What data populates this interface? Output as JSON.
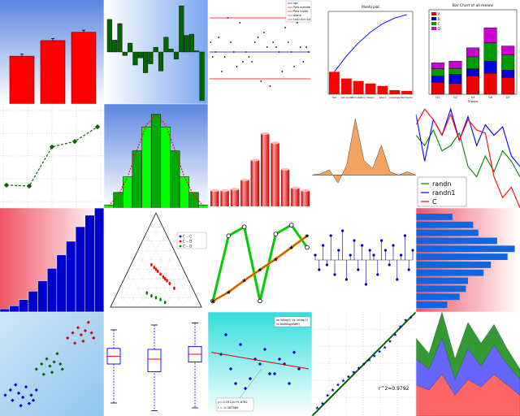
{
  "chart_data": [
    {
      "type": "bar",
      "title": "",
      "xlabel": "",
      "ylabel": "",
      "categories": [
        "",
        "",
        ""
      ],
      "values": [
        0.46,
        0.61,
        0.69
      ],
      "errors": [
        0.02,
        0.02,
        0.02
      ],
      "ylim": [
        0,
        1
      ],
      "colors": {
        "bar": "#ff0000",
        "background_top": "#6688dd",
        "background_bottom": "#ffffff"
      }
    },
    {
      "type": "bar",
      "title": "",
      "xlabel": "",
      "ylabel": "",
      "values": [
        0.55,
        0.2,
        0.48,
        -0.06,
        0.15,
        -0.22,
        -0.1,
        -0.35,
        -0.2,
        0.08,
        -0.32,
        0.25,
        0.05,
        -0.12,
        0.78,
        0.28,
        0.3,
        0.02,
        -0.82
      ],
      "ylim": [
        -0.85,
        0.85
      ],
      "colors": {
        "bar": "#006400",
        "edge": "#000000"
      }
    },
    {
      "type": "scatter",
      "title": "",
      "xlabel": "",
      "ylabel": "",
      "legend": [
        "spc",
        "Pnts outside",
        "Pnts inside",
        "Alpha",
        "Lsd=Ucl=Lcl"
      ],
      "legend_position": "top-right",
      "x": [
        0.01,
        0.03,
        0.06,
        0.09,
        0.12,
        0.15,
        0.18,
        0.21,
        0.24,
        0.27,
        0.3,
        0.33,
        0.36,
        0.39,
        0.42,
        0.45,
        0.48,
        0.51,
        0.54,
        0.57,
        0.6,
        0.63,
        0.66,
        0.69,
        0.72,
        0.75,
        0.78,
        0.81,
        0.84,
        0.87,
        0.9,
        0.93,
        0.96,
        0.98
      ],
      "y": [
        0.2,
        -0.1,
        0.0,
        0.3,
        -0.4,
        -0.1,
        0.7,
        0.2,
        0.0,
        -0.3,
        0.6,
        -0.2,
        0.0,
        -0.1,
        -0.2,
        0.2,
        0.3,
        -0.6,
        0.4,
        0.1,
        -0.7,
        0.2,
        0.1,
        0.0,
        -0.4,
        0.5,
        0.2,
        0.0,
        -0.3,
        0.6,
        0.1,
        -0.2,
        0.1,
        0.0
      ],
      "center_line": 0.0,
      "upper_limit": 0.7,
      "lower_limit": -0.55,
      "ylim": [
        -1,
        1
      ],
      "colors": {
        "center": "#0000ff",
        "limits": "#ff0000",
        "points": "#000000"
      }
    },
    {
      "type": "bar",
      "title": "Pareto plot",
      "xlabel": "",
      "ylabel": "",
      "categories": [
        "Sub",
        "Cat.Cards",
        "Permutation",
        "Sleeps",
        "Spent",
        "Leverage",
        "Permission"
      ],
      "values": [
        0.27,
        0.19,
        0.16,
        0.13,
        0.1,
        0.05,
        0.04
      ],
      "cumulative": [
        0.27,
        0.46,
        0.62,
        0.75,
        0.85,
        0.92,
        0.96
      ],
      "ylim": [
        0,
        1
      ],
      "colors": {
        "bar": "#ff0000",
        "line": "#0000ff"
      }
    },
    {
      "type": "bar",
      "title": "Bar Chart of all means",
      "xlabel": "Groups",
      "ylabel": "",
      "categories": [
        "G1",
        "G2",
        "G3",
        "G4",
        "G5"
      ],
      "series": [
        {
          "name": "A",
          "values": [
            0.2,
            0.18,
            0.3,
            0.35,
            0.28
          ]
        },
        {
          "name": "B",
          "values": [
            0.1,
            0.15,
            0.12,
            0.2,
            0.12
          ]
        },
        {
          "name": "C",
          "values": [
            0.12,
            0.1,
            0.2,
            0.3,
            0.25
          ]
        },
        {
          "name": "D",
          "values": [
            0.1,
            0.12,
            0.15,
            0.25,
            0.15
          ]
        }
      ],
      "ylim": [
        0,
        1.4
      ],
      "legend_position": "top-left",
      "colors": {
        "A": "#ee0000",
        "B": "#0000dd",
        "C": "#009900",
        "D": "#cc00cc"
      }
    },
    {
      "type": "line",
      "title": "",
      "xlabel": "",
      "ylabel": "",
      "x": [
        0,
        1,
        2,
        3,
        4
      ],
      "values": [
        0.18,
        0.17,
        0.6,
        0.66,
        0.82
      ],
      "ylim": [
        0,
        1
      ],
      "grid": true,
      "colors": {
        "line": "#006400"
      }
    },
    {
      "type": "bar",
      "title": "",
      "xlabel": "",
      "ylabel": "",
      "values": [
        0.03,
        0.15,
        0.3,
        0.55,
        0.78,
        0.9,
        0.78,
        0.55,
        0.3,
        0.15,
        0.03
      ],
      "curve": [
        0.02,
        0.12,
        0.3,
        0.56,
        0.8,
        0.9,
        0.8,
        0.56,
        0.3,
        0.12,
        0.02
      ],
      "ylim": [
        0,
        1
      ],
      "colors": {
        "bar_light": "#00ff00",
        "bar_dark": "#00aa00",
        "curve": "#ff0000"
      }
    },
    {
      "type": "bar",
      "title": "",
      "xlabel": "",
      "ylabel": "",
      "values": [
        0.12,
        0.12,
        0.13,
        0.2,
        0.35,
        0.55,
        0.48,
        0.28,
        0.14,
        0.12
      ],
      "ylim": [
        0,
        0.7
      ],
      "colors": {
        "bar": "#dd0000",
        "highlight": "#ffbbbb"
      }
    },
    {
      "type": "area",
      "title": "",
      "xlabel": "",
      "ylabel": "",
      "values": [
        0.0,
        0.02,
        0.08,
        -0.12,
        0.15,
        0.85,
        0.22,
        0.1,
        0.45,
        0.05,
        0.0,
        0.05,
        0.0
      ],
      "ylim": [
        -0.4,
        1
      ],
      "colors": {
        "fill": "#f4a460",
        "edge": "#444444"
      }
    },
    {
      "type": "line",
      "title": "",
      "xlabel": "",
      "ylabel": "",
      "series": [
        {
          "name": "randn",
          "values": [
            0.7,
            0.6,
            0.75,
            0.55,
            0.6,
            0.72,
            0.4,
            0.3,
            0.5,
            0.35,
            0.55,
            0.45,
            0.3
          ]
        },
        {
          "name": "randn1",
          "values": [
            0.9,
            0.45,
            0.85,
            0.7,
            0.95,
            0.65,
            0.88,
            0.6,
            0.8,
            0.7,
            0.78,
            0.5,
            0.4
          ]
        },
        {
          "name": "C",
          "values": [
            0.8,
            0.95,
            0.85,
            0.7,
            0.9,
            0.65,
            0.85,
            0.75,
            0.72,
            0.3,
            0.1,
            0.2,
            0.0
          ]
        }
      ],
      "legend_position": "lower-right",
      "colors": {
        "randn": "#008000",
        "randn1": "#0000ff",
        "C": "#ff0000"
      }
    },
    {
      "type": "bar",
      "title": "",
      "xlabel": "",
      "ylabel": "",
      "values": [
        0.03,
        0.06,
        0.12,
        0.2,
        0.3,
        0.42,
        0.55,
        0.68,
        0.82,
        0.93,
        1.0
      ],
      "ylim": [
        0,
        1
      ],
      "colors": {
        "bar": "#0000cc"
      }
    },
    {
      "type": "scatter",
      "title": "",
      "xlabel": "",
      "ylabel": "",
      "legend": [
        "C -- C",
        "C -- D",
        "C -- D"
      ],
      "legend_position": "top-right",
      "series": [
        {
          "name": "C -- C",
          "x": [
            0.45,
            0.48,
            0.5,
            0.52,
            0.55,
            0.58,
            0.6,
            0.62,
            0.65,
            0.7
          ],
          "y": [
            0.45,
            0.42,
            0.4,
            0.38,
            0.35,
            0.32,
            0.3,
            0.28,
            0.25,
            0.2
          ]
        },
        {
          "name": "C -- D",
          "x": [
            0.4,
            0.45,
            0.5,
            0.55,
            0.6
          ],
          "y": [
            0.15,
            0.12,
            0.1,
            0.08,
            0.05
          ]
        }
      ],
      "colors": {
        "a": "#0000ff",
        "b": "#ff0000",
        "c": "#008000"
      }
    },
    {
      "type": "line",
      "title": "",
      "xlabel": "",
      "ylabel": "",
      "series": [
        {
          "name": "",
          "values": [
            0.05,
            0.78,
            0.88,
            0.05,
            0.8,
            0.9,
            0.65
          ]
        },
        {
          "name": "",
          "values": [
            0.05,
            0.15,
            0.28,
            0.4,
            0.52,
            0.65,
            0.78
          ]
        }
      ],
      "colors": {
        "zigzag": "#00cc00",
        "trend": "#ff8800"
      }
    },
    {
      "type": "scatter",
      "title": "",
      "xlabel": "",
      "ylabel": "",
      "values": [
        0.1,
        -0.2,
        0.3,
        -0.1,
        0.5,
        -0.3,
        0.2,
        0.6,
        -0.4,
        0.1,
        0.4,
        -0.2,
        0.3,
        -0.5,
        0.2,
        0.1,
        -0.3,
        0.4,
        0.2,
        -0.1,
        0.3,
        -0.4,
        0.1,
        0.5,
        -0.2,
        0.2
      ],
      "ylim": [
        -1,
        1
      ],
      "colors": {
        "stem": "#000080",
        "marker": "#0000cc"
      }
    },
    {
      "type": "bar",
      "orientation": "horizontal",
      "title": "",
      "xlabel": "",
      "ylabel": "",
      "values": [
        0.35,
        0.55,
        0.6,
        0.78,
        0.95,
        0.88,
        0.72,
        0.65,
        0.5,
        0.48,
        0.42,
        0.3
      ],
      "xlim": [
        0,
        1
      ],
      "colors": {
        "bar": "#1166dd"
      }
    },
    {
      "type": "scatter",
      "title": "",
      "xlabel": "",
      "ylabel": "",
      "series": [
        {
          "name": "",
          "x": [
            0.05,
            0.1,
            0.12,
            0.15,
            0.18,
            0.2,
            0.22,
            0.25,
            0.28,
            0.3,
            0.32,
            0.35
          ],
          "y": [
            0.2,
            0.25,
            0.15,
            0.3,
            0.22,
            0.1,
            0.18,
            0.28,
            0.12,
            0.2,
            0.15,
            0.25
          ]
        },
        {
          "name": "",
          "x": [
            0.35,
            0.4,
            0.42,
            0.45,
            0.48,
            0.5,
            0.52,
            0.55,
            0.58,
            0.6
          ],
          "y": [
            0.45,
            0.5,
            0.4,
            0.55,
            0.48,
            0.42,
            0.52,
            0.6,
            0.5,
            0.45
          ]
        },
        {
          "name": "",
          "x": [
            0.65,
            0.7,
            0.72,
            0.75,
            0.78,
            0.8,
            0.82,
            0.85,
            0.88,
            0.9
          ],
          "y": [
            0.75,
            0.8,
            0.7,
            0.85,
            0.78,
            0.72,
            0.82,
            0.9,
            0.8,
            0.75
          ]
        }
      ],
      "colors": {
        "a": "#0000cc",
        "b": "#006400",
        "c": "#dd0000"
      }
    },
    {
      "type": "scatter",
      "subtype": "box",
      "title": "",
      "xlabel": "",
      "ylabel": "",
      "boxes": [
        {
          "min": 0.1,
          "q1": 0.5,
          "median": 0.58,
          "q3": 0.66,
          "max": 0.85
        },
        {
          "min": 0.02,
          "q1": 0.42,
          "median": 0.55,
          "q3": 0.65,
          "max": 0.9
        },
        {
          "min": 0.05,
          "q1": 0.52,
          "median": 0.6,
          "q3": 0.68,
          "max": 0.92
        }
      ],
      "colors": {
        "box": "#0000ff",
        "median": "#ff0000"
      }
    },
    {
      "type": "scatter",
      "title": "",
      "xlabel": "",
      "ylabel": "",
      "legend": [
        "intlog(0) Vs. intlog(2)",
        "bstfitlog(bstfit)"
      ],
      "legend_position": "top-right",
      "x": [
        0.1,
        0.2,
        0.3,
        0.4,
        0.5,
        0.6,
        0.7,
        0.8,
        0.9,
        0.15,
        0.35,
        0.55,
        0.75,
        0.25,
        0.45,
        0.65,
        0.85
      ],
      "y": [
        0.6,
        0.45,
        0.7,
        0.35,
        0.5,
        0.4,
        0.55,
        0.3,
        0.45,
        0.8,
        0.25,
        0.65,
        0.5,
        0.3,
        0.55,
        0.4,
        0.62
      ],
      "fit_label_1": "y=-0.2512x+9.8762",
      "fit_label_2": "r = -0.267389",
      "colors": {
        "points": "#0000cc",
        "fit": "#dd0000"
      }
    },
    {
      "type": "scatter",
      "title": "",
      "xlabel": "",
      "ylabel": "",
      "annotation": "r^2=0.9792",
      "x": [
        0.05,
        0.1,
        0.15,
        0.2,
        0.25,
        0.3,
        0.35,
        0.4,
        0.45,
        0.5,
        0.55,
        0.6,
        0.65,
        0.7,
        0.75,
        0.8,
        0.85,
        0.9,
        0.95
      ],
      "y": [
        0.08,
        0.12,
        0.2,
        0.25,
        0.3,
        0.34,
        0.38,
        0.42,
        0.46,
        0.5,
        0.54,
        0.58,
        0.62,
        0.66,
        0.72,
        0.78,
        0.86,
        0.92,
        0.95
      ],
      "colors": {
        "points": "#0000cc",
        "line": "#006400"
      }
    },
    {
      "type": "area",
      "title": "",
      "xlabel": "",
      "ylabel": "",
      "series": [
        {
          "name": "",
          "values": [
            0.3,
            0.25,
            0.4,
            0.2,
            0.35,
            0.28,
            0.4,
            0.3,
            0.2
          ]
        },
        {
          "name": "",
          "values": [
            0.25,
            0.2,
            0.35,
            0.15,
            0.3,
            0.2,
            0.28,
            0.2,
            0.15
          ]
        },
        {
          "name": "",
          "values": [
            0.2,
            0.15,
            0.25,
            0.2,
            0.25,
            0.22,
            0.2,
            0.15,
            0.1
          ]
        }
      ],
      "colors": {
        "bottom": "#ff6666",
        "middle": "#6666ff",
        "top": "#339933"
      }
    }
  ]
}
